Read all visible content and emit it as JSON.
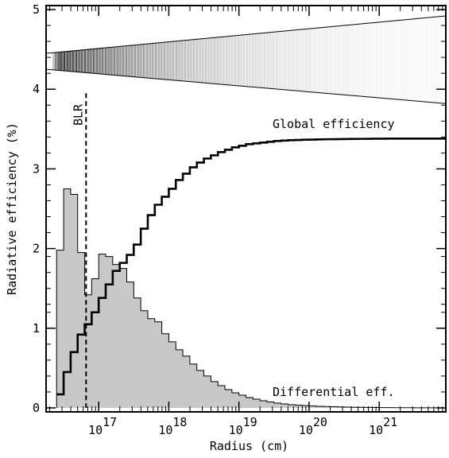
{
  "chart_data": {
    "type": "line",
    "xlabel": "Radius (cm)",
    "ylabel": "Radiative efficiency (%)",
    "x_scale": "log",
    "x_range_log10": [
      16.25,
      21.95
    ],
    "ylim": [
      -0.05,
      5.05
    ],
    "y_ticks": [
      0,
      1,
      2,
      3,
      4,
      5
    ],
    "x_major_ticks": [
      {
        "base": "10",
        "exp": "17",
        "log10": 17
      },
      {
        "base": "10",
        "exp": "18",
        "log10": 18
      },
      {
        "base": "10",
        "exp": "19",
        "log10": 19
      },
      {
        "base": "10",
        "exp": "20",
        "log10": 20
      },
      {
        "base": "10",
        "exp": "21",
        "log10": 21
      }
    ],
    "bin_width_log10": 0.1,
    "series": [
      {
        "name": "Differential eff.",
        "kind": "filled-step",
        "color": "#c8c8c8",
        "x_log10_bin_start": [
          16.4,
          16.5,
          16.6,
          16.7,
          16.8,
          16.9,
          17.0,
          17.1,
          17.2,
          17.3,
          17.4,
          17.5,
          17.6,
          17.7,
          17.8,
          17.9,
          18.0,
          18.1,
          18.2,
          18.3,
          18.4,
          18.5,
          18.6,
          18.7,
          18.8,
          18.9,
          19.0,
          19.1,
          19.2,
          19.3,
          19.4,
          19.5,
          19.6,
          19.7,
          19.8,
          19.9,
          20.0,
          20.1,
          20.2,
          20.3,
          20.4,
          20.5,
          20.6,
          20.7,
          20.8,
          20.9,
          21.0,
          21.1,
          21.2,
          21.3,
          21.4,
          21.5,
          21.6,
          21.7,
          21.8
        ],
        "values": [
          1.98,
          2.75,
          2.68,
          1.95,
          1.42,
          1.62,
          1.93,
          1.9,
          1.8,
          1.75,
          1.58,
          1.38,
          1.22,
          1.12,
          1.08,
          0.93,
          0.83,
          0.73,
          0.65,
          0.55,
          0.47,
          0.4,
          0.33,
          0.28,
          0.23,
          0.19,
          0.16,
          0.13,
          0.11,
          0.09,
          0.075,
          0.06,
          0.05,
          0.04,
          0.035,
          0.03,
          0.025,
          0.02,
          0.018,
          0.015,
          0.012,
          0.01,
          0.008,
          0.007,
          0.006,
          0.005,
          0.004,
          0.0035,
          0.003,
          0.0025,
          0.002,
          0.0015,
          0.001,
          0.001,
          0.001
        ]
      },
      {
        "name": "Global efficiency",
        "kind": "step",
        "color": "#000000",
        "x_log10_bin_start": [
          16.4,
          16.5,
          16.6,
          16.7,
          16.8,
          16.9,
          17.0,
          17.1,
          17.2,
          17.3,
          17.4,
          17.5,
          17.6,
          17.7,
          17.8,
          17.9,
          18.0,
          18.1,
          18.2,
          18.3,
          18.4,
          18.5,
          18.6,
          18.7,
          18.8,
          18.9,
          19.0,
          19.1,
          19.2,
          19.3,
          19.4,
          19.5,
          19.6,
          19.7,
          19.8,
          19.9,
          20.0,
          20.1,
          20.2,
          20.3,
          20.4,
          20.5,
          20.6,
          20.7,
          20.8,
          20.9,
          21.0,
          21.1,
          21.2,
          21.3,
          21.4,
          21.5,
          21.6,
          21.7,
          21.8
        ],
        "values": [
          0.17,
          0.45,
          0.7,
          0.92,
          1.05,
          1.2,
          1.38,
          1.55,
          1.72,
          1.82,
          1.92,
          2.05,
          2.25,
          2.42,
          2.55,
          2.65,
          2.75,
          2.86,
          2.94,
          3.02,
          3.08,
          3.13,
          3.17,
          3.21,
          3.24,
          3.27,
          3.29,
          3.31,
          3.32,
          3.33,
          3.34,
          3.35,
          3.355,
          3.36,
          3.363,
          3.366,
          3.368,
          3.37,
          3.372,
          3.373,
          3.374,
          3.375,
          3.376,
          3.377,
          3.378,
          3.379,
          3.379,
          3.38,
          3.38,
          3.38,
          3.38,
          3.38,
          3.38,
          3.38,
          3.38
        ]
      }
    ],
    "annotations": {
      "blr_label": "BLR",
      "blr_log10": 16.82,
      "global_label": "Global efficiency",
      "differential_label": "Differential eff."
    },
    "cone": {
      "apex_log10": 16.25,
      "top_at_apex": 4.45,
      "bottom_at_apex": 4.25,
      "top_at_end": 4.92,
      "bottom_at_end": 3.82
    }
  }
}
